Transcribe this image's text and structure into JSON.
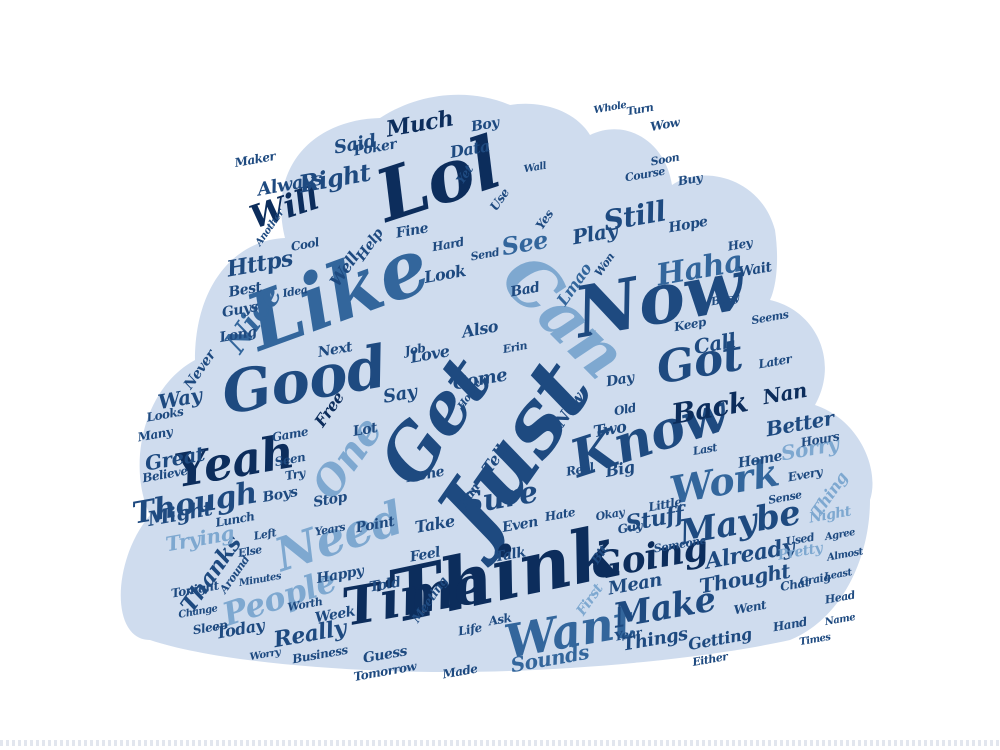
{
  "colors": {
    "cloud_fill": "#cfdcee",
    "dark_navy": "#0c2d5c",
    "navy": "#1e4a80",
    "mid_blue": "#33669c",
    "light_blue": "#7ea8d0",
    "pale_blue": "#a9c4e0",
    "background": "#ffffff"
  },
  "words": [
    {
      "text": "Just",
      "tone": "navy"
    },
    {
      "text": "Think",
      "tone": "dark_navy"
    },
    {
      "text": "Like",
      "tone": "mid_blue"
    },
    {
      "text": "Now",
      "tone": "navy"
    },
    {
      "text": "Lol",
      "tone": "dark_navy"
    },
    {
      "text": "Can",
      "tone": "light_blue"
    },
    {
      "text": "Get",
      "tone": "navy"
    },
    {
      "text": "Good",
      "tone": "navy"
    },
    {
      "text": "Know",
      "tone": "navy"
    },
    {
      "text": "Yeah",
      "tone": "dark_navy"
    },
    {
      "text": "Time",
      "tone": "dark_navy"
    },
    {
      "text": "Need",
      "tone": "light_blue"
    },
    {
      "text": "Want",
      "tone": "mid_blue"
    },
    {
      "text": "Got",
      "tone": "navy"
    },
    {
      "text": "One",
      "tone": "light_blue"
    },
    {
      "text": "Work",
      "tone": "mid_blue"
    },
    {
      "text": "Going",
      "tone": "dark_navy"
    },
    {
      "text": "Make",
      "tone": "navy"
    },
    {
      "text": "Maybe",
      "tone": "navy"
    },
    {
      "text": "People",
      "tone": "light_blue"
    },
    {
      "text": "Sure",
      "tone": "navy"
    },
    {
      "text": "Will",
      "tone": "dark_navy"
    },
    {
      "text": "Though",
      "tone": "navy"
    },
    {
      "text": "Haha",
      "tone": "mid_blue"
    },
    {
      "text": "Still",
      "tone": "navy"
    },
    {
      "text": "Nice",
      "tone": "mid_blue"
    },
    {
      "text": "Back",
      "tone": "dark_navy"
    },
    {
      "text": "Right",
      "tone": "navy"
    },
    {
      "text": "See",
      "tone": "mid_blue"
    },
    {
      "text": "Much",
      "tone": "dark_navy"
    },
    {
      "text": "Https",
      "tone": "navy"
    },
    {
      "text": "Play",
      "tone": "navy"
    },
    {
      "text": "Call",
      "tone": "navy"
    },
    {
      "text": "Nan",
      "tone": "dark_navy"
    },
    {
      "text": "Better",
      "tone": "navy"
    },
    {
      "text": "Sorry",
      "tone": "light_blue"
    },
    {
      "text": "Stuff",
      "tone": "navy"
    },
    {
      "text": "Already",
      "tone": "navy"
    },
    {
      "text": "Thought",
      "tone": "navy"
    },
    {
      "text": "Really",
      "tone": "navy"
    },
    {
      "text": "Sounds",
      "tone": "mid_blue"
    },
    {
      "text": "Things",
      "tone": "navy"
    },
    {
      "text": "Getting",
      "tone": "navy"
    },
    {
      "text": "Thanks",
      "tone": "navy"
    },
    {
      "text": "Trying",
      "tone": "light_blue"
    },
    {
      "text": "Might",
      "tone": "navy"
    },
    {
      "text": "Great",
      "tone": "navy"
    },
    {
      "text": "Way",
      "tone": "navy"
    },
    {
      "text": "Always",
      "tone": "navy"
    },
    {
      "text": "Said",
      "tone": "navy"
    },
    {
      "text": "Data",
      "tone": "navy"
    },
    {
      "text": "Come",
      "tone": "navy"
    },
    {
      "text": "Say",
      "tone": "navy"
    },
    {
      "text": "Free",
      "tone": "dark_navy"
    },
    {
      "text": "Two",
      "tone": "navy"
    },
    {
      "text": "New",
      "tone": "navy"
    },
    {
      "text": "Tell",
      "tone": "navy"
    },
    {
      "text": "Big",
      "tone": "navy"
    },
    {
      "text": "Take",
      "tone": "navy"
    },
    {
      "text": "Done",
      "tone": "navy"
    },
    {
      "text": "Even",
      "tone": "navy"
    },
    {
      "text": "Feel",
      "tone": "navy"
    },
    {
      "text": "Today",
      "tone": "navy"
    },
    {
      "text": "Guess",
      "tone": "navy"
    },
    {
      "text": "Week",
      "tone": "navy"
    },
    {
      "text": "Tomorrow",
      "tone": "navy"
    },
    {
      "text": "Made",
      "tone": "navy"
    },
    {
      "text": "Mean",
      "tone": "navy"
    },
    {
      "text": "First",
      "tone": "light_blue"
    },
    {
      "text": "Also",
      "tone": "navy"
    },
    {
      "text": "Love",
      "tone": "navy"
    },
    {
      "text": "Look",
      "tone": "navy"
    },
    {
      "text": "Bad",
      "tone": "navy"
    },
    {
      "text": "Fine",
      "tone": "navy"
    },
    {
      "text": "Hope",
      "tone": "navy"
    },
    {
      "text": "Lmao",
      "tone": "mid_blue"
    },
    {
      "text": "Best",
      "tone": "navy"
    },
    {
      "text": "Guys",
      "tone": "navy"
    },
    {
      "text": "Long",
      "tone": "navy"
    },
    {
      "text": "Next",
      "tone": "navy"
    },
    {
      "text": "Never",
      "tone": "navy"
    },
    {
      "text": "Boys",
      "tone": "navy"
    },
    {
      "text": "Stop",
      "tone": "navy"
    },
    {
      "text": "Point",
      "tone": "navy"
    },
    {
      "text": "Happy",
      "tone": "navy"
    },
    {
      "text": "Told",
      "tone": "navy"
    },
    {
      "text": "Talk",
      "tone": "navy"
    },
    {
      "text": "Day",
      "tone": "navy"
    },
    {
      "text": "Hours",
      "tone": "navy"
    },
    {
      "text": "Home",
      "tone": "navy"
    },
    {
      "text": "Every",
      "tone": "navy"
    },
    {
      "text": "Night",
      "tone": "light_blue"
    },
    {
      "text": "Pretty",
      "tone": "light_blue"
    },
    {
      "text": "Thing",
      "tone": "light_blue"
    },
    {
      "text": "Went",
      "tone": "navy"
    },
    {
      "text": "Poker",
      "tone": "navy"
    },
    {
      "text": "Boy",
      "tone": "navy"
    },
    {
      "text": "Cool",
      "tone": "navy"
    },
    {
      "text": "Later",
      "tone": "navy"
    },
    {
      "text": "Lunch",
      "tone": "navy"
    },
    {
      "text": "Game",
      "tone": "navy"
    },
    {
      "text": "Believe",
      "tone": "navy"
    },
    {
      "text": "Many",
      "tone": "navy"
    },
    {
      "text": "Looks",
      "tone": "navy"
    },
    {
      "text": "Tonight",
      "tone": "navy"
    },
    {
      "text": "Sleep",
      "tone": "navy"
    },
    {
      "text": "Business",
      "tone": "navy"
    },
    {
      "text": "Wait",
      "tone": "navy"
    },
    {
      "text": "Hey",
      "tone": "navy"
    },
    {
      "text": "Keep",
      "tone": "navy"
    },
    {
      "text": "Yes",
      "tone": "navy"
    },
    {
      "text": "Well",
      "tone": "navy"
    },
    {
      "text": "Help",
      "tone": "navy"
    },
    {
      "text": "Buy",
      "tone": "navy"
    },
    {
      "text": "Job",
      "tone": "navy"
    },
    {
      "text": "Seen",
      "tone": "navy"
    },
    {
      "text": "Try",
      "tone": "navy"
    },
    {
      "text": "Lot",
      "tone": "navy"
    },
    {
      "text": "Life",
      "tone": "navy"
    },
    {
      "text": "Ask",
      "tone": "navy"
    },
    {
      "text": "Old",
      "tone": "navy"
    },
    {
      "text": "Year",
      "tone": "navy"
    },
    {
      "text": "Real",
      "tone": "navy"
    },
    {
      "text": "Use",
      "tone": "navy"
    },
    {
      "text": "Yet",
      "tone": "navy"
    },
    {
      "text": "Bit",
      "tone": "navy"
    },
    {
      "text": "Guy",
      "tone": "navy"
    },
    {
      "text": "Hand",
      "tone": "navy"
    },
    {
      "text": "Chat",
      "tone": "navy"
    },
    {
      "text": "Little",
      "tone": "navy"
    },
    {
      "text": "Hate",
      "tone": "navy"
    },
    {
      "text": "Fun",
      "tone": "navy"
    },
    {
      "text": "Meeting",
      "tone": "navy"
    },
    {
      "text": "Someone",
      "tone": "navy"
    },
    {
      "text": "Sense",
      "tone": "navy"
    },
    {
      "text": "Used",
      "tone": "navy"
    },
    {
      "text": "Craig",
      "tone": "navy"
    },
    {
      "text": "Head",
      "tone": "navy"
    },
    {
      "text": "Seems",
      "tone": "navy"
    },
    {
      "text": "Busy",
      "tone": "navy"
    },
    {
      "text": "Okay",
      "tone": "navy"
    },
    {
      "text": "Hard",
      "tone": "navy"
    },
    {
      "text": "Course",
      "tone": "navy"
    },
    {
      "text": "Soon",
      "tone": "navy"
    },
    {
      "text": "Wow",
      "tone": "navy"
    },
    {
      "text": "Turn",
      "tone": "navy"
    },
    {
      "text": "Whole",
      "tone": "navy"
    },
    {
      "text": "Send",
      "tone": "navy"
    },
    {
      "text": "Idea",
      "tone": "navy"
    },
    {
      "text": "Left",
      "tone": "navy"
    },
    {
      "text": "Worth",
      "tone": "navy"
    },
    {
      "text": "Either",
      "tone": "navy"
    },
    {
      "text": "Else",
      "tone": "navy"
    },
    {
      "text": "Around",
      "tone": "navy"
    },
    {
      "text": "Years",
      "tone": "navy"
    },
    {
      "text": "Last",
      "tone": "navy"
    },
    {
      "text": "Won",
      "tone": "navy"
    },
    {
      "text": "Erin",
      "tone": "navy"
    },
    {
      "text": "Agree",
      "tone": "navy"
    },
    {
      "text": "Almost",
      "tone": "navy"
    },
    {
      "text": "Minutes",
      "tone": "navy"
    },
    {
      "text": "Change",
      "tone": "navy"
    },
    {
      "text": "Worry",
      "tone": "navy"
    },
    {
      "text": "Name",
      "tone": "navy"
    },
    {
      "text": "Times",
      "tone": "navy"
    },
    {
      "text": "Another",
      "tone": "navy"
    },
    {
      "text": "Maker",
      "tone": "navy"
    },
    {
      "text": "Wall",
      "tone": "navy"
    },
    {
      "text": "Least",
      "tone": "navy"
    },
    {
      "text": "House",
      "tone": "navy"
    }
  ]
}
